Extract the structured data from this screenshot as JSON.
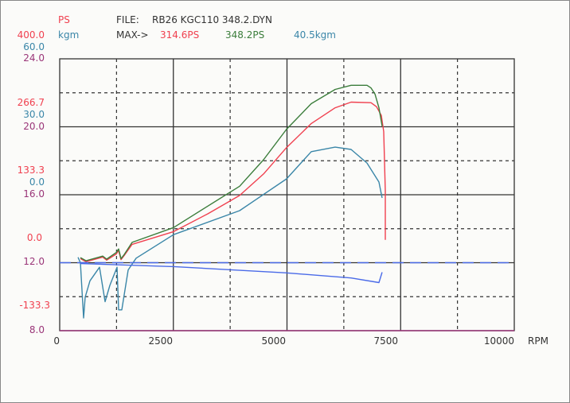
{
  "header": {
    "ps_unit": "PS",
    "kgm_unit": "kgm",
    "file_label": "FILE:",
    "file_name": "RB26 KGC110 348.2.DYN",
    "max_label": "MAX->",
    "max_red": "314.6PS",
    "max_green": "348.2PS",
    "max_torque": "40.5kgm"
  },
  "colors": {
    "ps": "#f0404f",
    "green": "#3b7d3b",
    "kgm": "#3a86a8",
    "scale3": "#9a3578",
    "afr": "#4a6ae8",
    "grid": "#333333"
  },
  "chart_data": {
    "type": "line",
    "xlabel": "RPM",
    "xlim": [
      0,
      10000
    ],
    "x_ticks": [
      "0",
      "2500",
      "5000",
      "7500",
      "10000"
    ],
    "y_axes": {
      "ps": {
        "range": [
          -133.3,
          400
        ],
        "ticks": [
          "400.0",
          "266.7",
          "133.3",
          "0.0",
          "-133.3"
        ]
      },
      "kgm": {
        "range": [
          0,
          60
        ],
        "ticks": [
          "60.0",
          "30.0",
          "0.0"
        ]
      },
      "scale3": {
        "range": [
          8,
          24
        ],
        "ticks": [
          "24.0",
          "20.0",
          "16.0",
          "12.0",
          "8.0"
        ]
      }
    },
    "grid": true,
    "series": [
      {
        "name": "Power (red)",
        "axis": "ps",
        "color": "#f0404f",
        "x": [
          455,
          578,
          945,
          1033,
          1243,
          1296,
          1348,
          1418,
          1594,
          2504,
          3257,
          3958,
          4483,
          4991,
          5534,
          6060,
          6410,
          6848,
          6970,
          7075,
          7128,
          7163,
          7163
        ],
        "y": [
          8,
          2,
          11,
          5,
          17,
          24,
          6,
          14,
          36,
          61,
          96,
          132,
          174,
          226,
          273,
          304,
          315,
          314,
          306,
          289,
          257,
          140,
          45
        ]
      },
      {
        "name": "Power (green)",
        "axis": "ps",
        "color": "#3b7d3b",
        "x": [
          455,
          578,
          945,
          1033,
          1243,
          1296,
          1348,
          1418,
          1594,
          2504,
          3257,
          3958,
          4483,
          4991,
          5534,
          6060,
          6410,
          6760,
          6848,
          6935,
          7023,
          7093
        ],
        "y": [
          10,
          4,
          13,
          7,
          20,
          27,
          8,
          16,
          40,
          69,
          111,
          150,
          202,
          262,
          312,
          340,
          348,
          348,
          343,
          331,
          304,
          268
        ]
      },
      {
        "name": "Torque",
        "axis": "kgm",
        "color": "#3a86a8",
        "x": [
          403,
          455,
          525,
          560,
          665,
          876,
          998,
          1103,
          1261,
          1296,
          1366,
          1506,
          1681,
          2504,
          3958,
          4991,
          5534,
          6060,
          6410,
          6760,
          7023,
          7093
        ],
        "y": [
          16.2,
          15,
          2.8,
          7.4,
          11,
          14,
          6.4,
          10,
          14,
          4.6,
          4.6,
          13.4,
          16,
          21.2,
          26.5,
          33.5,
          39.5,
          40.5,
          40,
          37,
          32.8,
          29.3
        ]
      },
      {
        "name": "Blue trace",
        "axis": "scale3",
        "color": "#4a6ae8",
        "x": [
          455,
          2504,
          4991,
          6410,
          7023,
          7093
        ],
        "y": [
          11.95,
          11.77,
          11.4,
          11.1,
          10.83,
          11.44
        ]
      },
      {
        "name": "Blue reference (dashed)",
        "axis": "scale3",
        "color": "#4a6ae8",
        "dashed": true,
        "x": [
          0,
          9900
        ],
        "y": [
          12,
          12
        ]
      },
      {
        "name": "Scale3 baseline",
        "axis": "scale3",
        "color": "#9a3578",
        "x": [
          0,
          10000
        ],
        "y": [
          8,
          8
        ]
      }
    ]
  }
}
